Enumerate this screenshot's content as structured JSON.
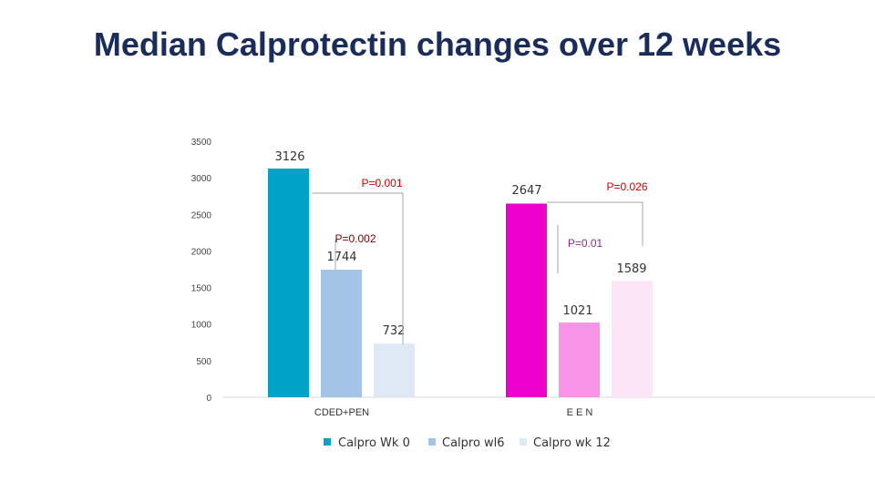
{
  "chart_data": {
    "type": "bar",
    "title": "Median Calprotectin changes over 12 weeks",
    "xlabel": "",
    "ylabel": "",
    "ylim": [
      0,
      3500
    ],
    "yticks": [
      0,
      500,
      1000,
      1500,
      2000,
      2500,
      3000,
      3500
    ],
    "grid": false,
    "legend_position": "bottom",
    "categories": [
      "CDED+PEN",
      "E E N"
    ],
    "series": [
      {
        "name": "Calpro Wk 0",
        "values": [
          3126,
          2647
        ],
        "labels": [
          "3126",
          "2647"
        ],
        "colors": [
          "#00a2c8",
          "#ee00cc"
        ]
      },
      {
        "name": "Calpro wl6",
        "values": [
          1744,
          1021
        ],
        "labels": [
          "1744",
          "1021"
        ],
        "colors": [
          "#a3c4e6",
          "#f994e8"
        ]
      },
      {
        "name": "Calpro wk 12",
        "values": [
          732,
          1589
        ],
        "labels": [
          "732",
          "1589"
        ],
        "colors": [
          "#dfe8f5",
          "#fde5f8"
        ]
      }
    ],
    "legend_colors": [
      "#00a2c8",
      "#a3c4e6",
      "#dfe8f5"
    ],
    "annotations": {
      "p1": "P=0.001",
      "p2": "P=0.002",
      "p3": "P=0.026",
      "p4": "P=0.01"
    }
  }
}
